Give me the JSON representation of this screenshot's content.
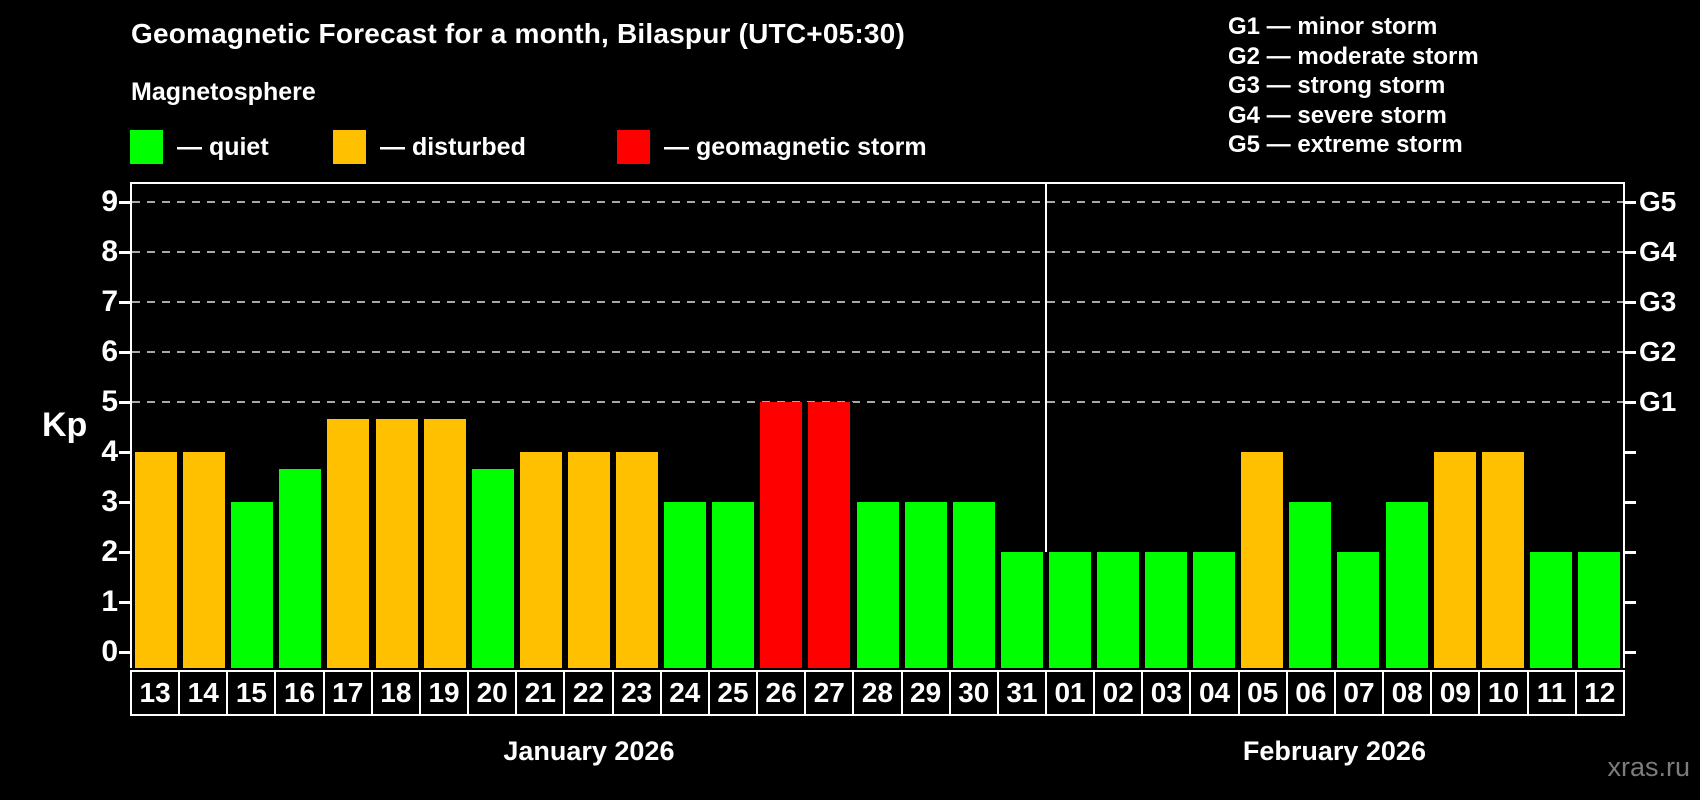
{
  "title": "Geomagnetic Forecast for a month, Bilaspur (UTC+05:30)",
  "subtitle": "Magnetosphere",
  "legend": {
    "items": [
      {
        "key": "quiet",
        "label": "— quiet",
        "color": "#00ff00"
      },
      {
        "key": "disturbed",
        "label": "— disturbed",
        "color": "#ffc000"
      },
      {
        "key": "storm",
        "label": "— geomagnetic storm",
        "color": "#ff0000"
      }
    ]
  },
  "g_legend": {
    "items": [
      {
        "label": "G1 — minor storm"
      },
      {
        "label": "G2 — moderate storm"
      },
      {
        "label": "G3 — strong storm"
      },
      {
        "label": "G4 — severe storm"
      },
      {
        "label": "G5 — extreme storm"
      }
    ]
  },
  "watermark": "xras.ru",
  "chart_data": {
    "type": "bar",
    "title": "Geomagnetic Forecast for a month, Bilaspur (UTC+05:30)",
    "xlabel": "",
    "ylabel": "Kp",
    "ylim": [
      0,
      9
    ],
    "yticks": [
      0,
      1,
      2,
      3,
      4,
      5,
      6,
      7,
      8,
      9
    ],
    "gridlines_at_kp": [
      5,
      6,
      7,
      8,
      9
    ],
    "grid_style": "horizontal dashed gray lines only at G-storm levels (Kp 5-9)",
    "legend_position": "top-left",
    "right_axis": [
      {
        "label": "G1",
        "kp": 5
      },
      {
        "label": "G2",
        "kp": 6
      },
      {
        "label": "G3",
        "kp": 7
      },
      {
        "label": "G4",
        "kp": 8
      },
      {
        "label": "G5",
        "kp": 9
      }
    ],
    "status_colors": {
      "quiet": "#00ff00",
      "disturbed": "#ffc000",
      "storm": "#ff0000"
    },
    "months": [
      {
        "name": "January 2026",
        "days": [
          {
            "date": "13",
            "kp": 4,
            "status": "disturbed"
          },
          {
            "date": "14",
            "kp": 4,
            "status": "disturbed"
          },
          {
            "date": "15",
            "kp": 3,
            "status": "quiet"
          },
          {
            "date": "16",
            "kp": 3.67,
            "status": "quiet"
          },
          {
            "date": "17",
            "kp": 4.67,
            "status": "disturbed"
          },
          {
            "date": "18",
            "kp": 4.67,
            "status": "disturbed"
          },
          {
            "date": "19",
            "kp": 4.67,
            "status": "disturbed"
          },
          {
            "date": "20",
            "kp": 3.67,
            "status": "quiet"
          },
          {
            "date": "21",
            "kp": 4,
            "status": "disturbed"
          },
          {
            "date": "22",
            "kp": 4,
            "status": "disturbed"
          },
          {
            "date": "23",
            "kp": 4,
            "status": "disturbed"
          },
          {
            "date": "24",
            "kp": 3,
            "status": "quiet"
          },
          {
            "date": "25",
            "kp": 3,
            "status": "quiet"
          },
          {
            "date": "26",
            "kp": 5,
            "status": "storm"
          },
          {
            "date": "27",
            "kp": 5,
            "status": "storm"
          },
          {
            "date": "28",
            "kp": 3,
            "status": "quiet"
          },
          {
            "date": "29",
            "kp": 3,
            "status": "quiet"
          },
          {
            "date": "30",
            "kp": 3,
            "status": "quiet"
          },
          {
            "date": "31",
            "kp": 2,
            "status": "quiet"
          }
        ]
      },
      {
        "name": "February 2026",
        "days": [
          {
            "date": "01",
            "kp": 2,
            "status": "quiet"
          },
          {
            "date": "02",
            "kp": 2,
            "status": "quiet"
          },
          {
            "date": "03",
            "kp": 2,
            "status": "quiet"
          },
          {
            "date": "04",
            "kp": 2,
            "status": "quiet"
          },
          {
            "date": "05",
            "kp": 4,
            "status": "disturbed"
          },
          {
            "date": "06",
            "kp": 3,
            "status": "quiet"
          },
          {
            "date": "07",
            "kp": 2,
            "status": "quiet"
          },
          {
            "date": "08",
            "kp": 3,
            "status": "quiet"
          },
          {
            "date": "09",
            "kp": 4,
            "status": "disturbed"
          },
          {
            "date": "10",
            "kp": 4,
            "status": "disturbed"
          },
          {
            "date": "11",
            "kp": 2,
            "status": "quiet"
          },
          {
            "date": "12",
            "kp": 2,
            "status": "quiet"
          }
        ]
      }
    ]
  }
}
